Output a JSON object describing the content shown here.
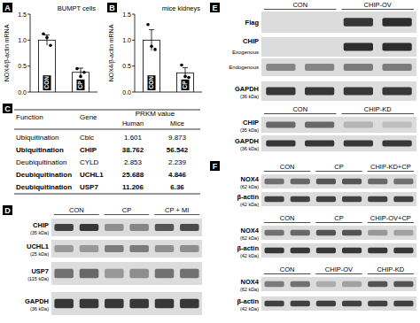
{
  "chart_data": [
    {
      "type": "bar",
      "panel": "A",
      "title": "BUMPT cells",
      "y_label": "NOX4/β-actin mRNA",
      "categories": [
        "CON",
        "CP"
      ],
      "values": [
        1.0,
        0.38
      ],
      "errors": [
        0.1,
        0.08
      ],
      "points": [
        [
          1.12,
          1.05,
          0.9
        ],
        [
          0.45,
          0.3,
          0.38
        ]
      ],
      "ylim": [
        0,
        1.5
      ],
      "yticks": [
        {
          "value": 0,
          "label": "0.0"
        },
        0.5,
        {
          "value": 1,
          "label": "1.0"
        },
        1.5
      ],
      "color": "#ffffff"
    },
    {
      "type": "bar",
      "panel": "B",
      "title": "mice kidneys",
      "y_label": "NOX4/β-actin mRNA",
      "categories": [
        "CON",
        "CP"
      ],
      "values": [
        1.0,
        0.37
      ],
      "errors": [
        0.2,
        0.1
      ],
      "points": [
        [
          1.3,
          0.88,
          0.82
        ],
        [
          0.52,
          0.3,
          0.28
        ]
      ],
      "ylim": [
        0,
        1.5
      ],
      "yticks": [
        {
          "value": 0,
          "label": "0.0"
        },
        0.5,
        {
          "value": 1,
          "label": "1.0"
        },
        1.5
      ],
      "color": "#ffffff"
    }
  ],
  "table": {
    "panel": "C",
    "header": [
      "Function",
      "Gene",
      "PRKM value"
    ],
    "subheader": [
      "Human",
      "Mice"
    ],
    "rows": [
      {
        "cells": [
          "Ubiquitination",
          "Cblc",
          "1.601",
          "9.873"
        ],
        "bold": false
      },
      {
        "cells": [
          "Ubiquitination",
          "CHIP",
          "38.762",
          "56.542"
        ],
        "bold": true
      },
      {
        "cells": [
          "Deubiquitination",
          "CYLD",
          "2.853",
          "2.239"
        ],
        "bold": false
      },
      {
        "cells": [
          "Deubiquitination",
          "UCHL1",
          "25.688",
          "4.846"
        ],
        "bold": true
      },
      {
        "cells": [
          "Deubiquitination",
          "USP7",
          "11.206",
          "6.36"
        ],
        "bold": true
      }
    ]
  },
  "blots": [
    {
      "panel": "D",
      "groups": [
        "CON",
        "CP",
        "CP + MI"
      ],
      "rows": [
        {
          "name": "CHIP",
          "size": "(35 kDa)",
          "intensity": [
            0.8,
            0.85,
            0.4,
            0.45,
            0.7,
            0.75
          ]
        },
        {
          "name": "UCHL1",
          "size": "(25 kDa)",
          "intensity": [
            0.35,
            0.35,
            0.5,
            0.5,
            0.4,
            0.4
          ]
        },
        {
          "name": "USP7",
          "size": "(115 kDa)",
          "intensity": [
            0.55,
            0.6,
            0.35,
            0.4,
            0.55,
            0.55
          ]
        },
        {
          "name": "GAPDH",
          "size": "(36 kDa)",
          "intensity": [
            0.85,
            0.85,
            0.85,
            0.85,
            0.85,
            0.85
          ]
        }
      ]
    },
    {
      "panel": "E",
      "groups": [
        "CON",
        "CHIP-OV"
      ],
      "rows": [
        {
          "name": "Flag",
          "intensity": [
            0,
            0,
            0.85,
            0.9
          ]
        },
        {
          "name": "CHIP",
          "band": "Exogenous",
          "intensity": [
            0,
            0,
            0.9,
            0.9
          ]
        },
        {
          "band": "Endogenous",
          "intensity": [
            0.45,
            0.45,
            0.5,
            0.5
          ]
        },
        {
          "name": "GAPDH",
          "size": "(36 kDa)",
          "intensity": [
            0.85,
            0.85,
            0.85,
            0.85
          ]
        }
      ]
    },
    {
      "groups": [
        "CON",
        "CHIP-KD"
      ],
      "rows": [
        {
          "name": "CHIP",
          "size": "(35 kDa)",
          "intensity": [
            0.6,
            0.6,
            0.2,
            0.15
          ]
        },
        {
          "name": "GAPDH",
          "size": "(36 kDa)",
          "intensity": [
            0.85,
            0.85,
            0.85,
            0.85
          ]
        }
      ]
    },
    {
      "panel": "F",
      "groups": [
        "CON",
        "CP",
        "CHIP-KD+CP"
      ],
      "rows": [
        {
          "name": "NOX4",
          "size": "(62 kDa)",
          "intensity": [
            0.55,
            0.6,
            0.7,
            0.7,
            0.6,
            0.55
          ]
        },
        {
          "name": "β-actin",
          "size": "(42 kDa)",
          "intensity": [
            0.8,
            0.8,
            0.8,
            0.8,
            0.8,
            0.8
          ]
        }
      ]
    },
    {
      "groups": [
        "CON",
        "CP",
        "CHIP-OV+CP"
      ],
      "rows": [
        {
          "name": "NOX4",
          "size": "(62 kDa)",
          "intensity": [
            0.55,
            0.6,
            0.7,
            0.7,
            0.35,
            0.3
          ]
        },
        {
          "name": "β-actin",
          "size": "(42 kDa)",
          "intensity": [
            0.85,
            0.85,
            0.85,
            0.85,
            0.85,
            0.85
          ]
        }
      ]
    },
    {
      "groups": [
        "CON",
        "CHIP-OV",
        "CHIP-KD"
      ],
      "rows": [
        {
          "name": "NOX4",
          "size": "(62 kDa)",
          "intensity": [
            0.5,
            0.55,
            0.25,
            0.3,
            0.7,
            0.7
          ]
        },
        {
          "name": "β-actin",
          "size": "(42 kDa)",
          "intensity": [
            0.8,
            0.8,
            0.8,
            0.8,
            0.8,
            0.8
          ]
        }
      ]
    }
  ]
}
